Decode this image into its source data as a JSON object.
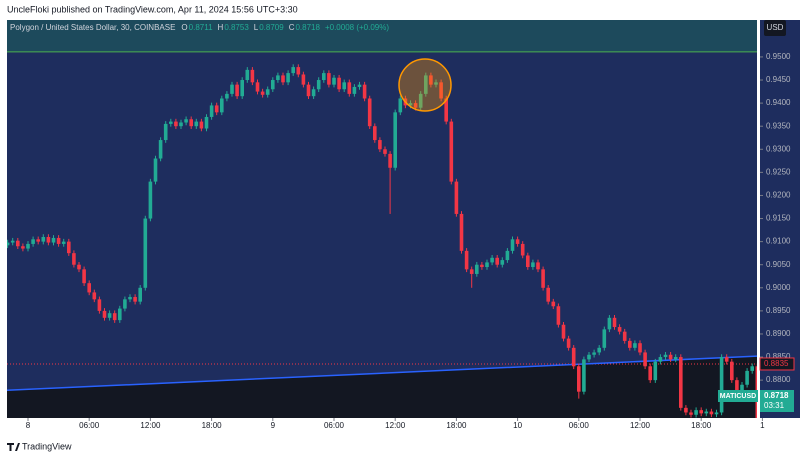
{
  "chart_data": {
    "type": "candlestick",
    "publisher": "UncleFloki published on TradingView.com, Apr 11, 2024 15:56 UTC+3:30",
    "title": "Polygon / United States Dollar, 30, COINBASE",
    "legend_ohlc": [
      {
        "label": "O",
        "value": 0.8711
      },
      {
        "label": "H",
        "value": 0.8753
      },
      {
        "label": "L",
        "value": 0.8709
      },
      {
        "label": "C",
        "value": 0.8718
      }
    ],
    "change": "+0.0008 (+0.09%)",
    "currency": "USD",
    "symbol": "MATICUSD",
    "last_price": 0.8718,
    "countdown": "03:31",
    "footer": "TradingView",
    "up_color": "#22ab94",
    "down_color": "#f23645",
    "ylim": [
      0.8718,
      0.958
    ],
    "yticks": [
      {
        "value": 0.95,
        "label": "0.9500"
      },
      {
        "value": 0.945,
        "label": "0.9450"
      },
      {
        "value": 0.94,
        "label": "0.9400"
      },
      {
        "value": 0.935,
        "label": "0.9350"
      },
      {
        "value": 0.93,
        "label": "0.9300"
      },
      {
        "value": 0.925,
        "label": "0.9250"
      },
      {
        "value": 0.92,
        "label": "0.9200"
      },
      {
        "value": 0.915,
        "label": "0.9150"
      },
      {
        "value": 0.91,
        "label": "0.9100"
      },
      {
        "value": 0.905,
        "label": "0.9050"
      },
      {
        "value": 0.9,
        "label": "0.9000"
      },
      {
        "value": 0.895,
        "label": "0.8950"
      },
      {
        "value": 0.89,
        "label": "0.8900"
      },
      {
        "value": 0.885,
        "label": "0.8850"
      },
      {
        "value": 0.88,
        "label": "0.8800"
      }
    ],
    "levels": [
      {
        "value": 0.9511,
        "color": "#4caf50"
      },
      {
        "value": 0.8835,
        "color": "#f23645"
      }
    ],
    "trendline": {
      "values": [
        0.8778,
        0.8852
      ],
      "color": "#2962ff"
    },
    "categories": [
      null,
      null,
      null,
      null,
      "8",
      null,
      null,
      null,
      null,
      null,
      null,
      null,
      null,
      null,
      null,
      null,
      "06:00",
      null,
      null,
      null,
      null,
      null,
      null,
      null,
      null,
      null,
      null,
      null,
      "12:00",
      null,
      null,
      null,
      null,
      null,
      null,
      null,
      null,
      null,
      null,
      null,
      "18:00",
      null,
      null,
      null,
      null,
      null,
      null,
      null,
      null,
      null,
      null,
      null,
      "9",
      null,
      null,
      null,
      null,
      null,
      null,
      null,
      null,
      null,
      null,
      null,
      "06:00",
      null,
      null,
      null,
      null,
      null,
      null,
      null,
      null,
      null,
      null,
      null,
      "12:00",
      null,
      null,
      null,
      null,
      null,
      null,
      null,
      null,
      null,
      null,
      null,
      "18:00",
      null,
      null,
      null,
      null,
      null,
      null,
      null,
      null,
      null,
      null,
      null,
      "10",
      null,
      null,
      null,
      null,
      null,
      null,
      null,
      null,
      null,
      null,
      null,
      "06:00",
      null,
      null,
      null,
      null,
      null,
      null,
      null,
      null,
      null,
      null,
      null,
      "12:00",
      null,
      null,
      null,
      null,
      null,
      null,
      null,
      null,
      null,
      null,
      null,
      "18:00",
      null,
      null,
      null,
      null,
      null,
      null,
      null,
      null,
      null,
      null,
      null,
      "1"
    ],
    "open": [
      0.9092,
      0.9098,
      0.9102,
      0.909,
      0.9085,
      0.9095,
      0.9105,
      0.91,
      0.911,
      0.9098,
      0.9108,
      0.9095,
      0.91,
      0.9075,
      0.905,
      0.904,
      0.901,
      0.899,
      0.8975,
      0.895,
      0.8935,
      0.8945,
      0.893,
      0.8955,
      0.8975,
      0.898,
      0.897,
      0.9,
      0.915,
      0.923,
      0.928,
      0.932,
      0.9355,
      0.936,
      0.935,
      0.9358,
      0.9365,
      0.935,
      0.936,
      0.9345,
      0.937,
      0.9395,
      0.938,
      0.941,
      0.942,
      0.944,
      0.9415,
      0.945,
      0.9472,
      0.9445,
      0.9425,
      0.9418,
      0.943,
      0.945,
      0.946,
      0.9445,
      0.9465,
      0.9478,
      0.9462,
      0.944,
      0.9415,
      0.943,
      0.945,
      0.9465,
      0.944,
      0.9455,
      0.943,
      0.9445,
      0.942,
      0.9435,
      0.944,
      0.941,
      0.935,
      0.932,
      0.93,
      0.929,
      0.926,
      0.938,
      0.941,
      0.9395,
      0.94,
      0.939,
      0.942,
      0.946,
      0.944,
      0.9445,
      0.941,
      0.936,
      0.923,
      0.916,
      0.908,
      0.904,
      0.903,
      0.905,
      0.9045,
      0.9055,
      0.9065,
      0.905,
      0.906,
      0.908,
      0.9105,
      0.9095,
      0.907,
      0.9045,
      0.9055,
      0.904,
      0.9,
      0.897,
      0.896,
      0.892,
      0.889,
      0.887,
      0.883,
      0.8775,
      0.8845,
      0.8855,
      0.886,
      0.887,
      0.891,
      0.8935,
      0.8915,
      0.8905,
      0.8885,
      0.887,
      0.888,
      0.886,
      0.883,
      0.88,
      0.884,
      0.885,
      0.8855,
      0.8845,
      0.885,
      0.874,
      0.873,
      0.8725,
      0.8735,
      0.8728,
      0.8732,
      0.8726,
      0.873,
      0.885,
      0.884,
      0.88,
      0.876,
      0.879,
      0.882,
      0.883,
      0.8711
    ],
    "high": [
      0.9104,
      0.9108,
      0.9108,
      0.9096,
      0.9101,
      0.9111,
      0.9111,
      0.9116,
      0.9116,
      0.9114,
      0.9114,
      0.9106,
      0.9106,
      0.9081,
      0.9056,
      0.9046,
      0.9016,
      0.8996,
      0.8981,
      0.8956,
      0.8951,
      0.8951,
      0.8961,
      0.8981,
      0.8986,
      0.8986,
      0.9006,
      0.9156,
      0.9236,
      0.9286,
      0.9326,
      0.9361,
      0.9366,
      0.9366,
      0.9364,
      0.9371,
      0.9371,
      0.9366,
      0.9366,
      0.9376,
      0.9401,
      0.9401,
      0.9416,
      0.9426,
      0.9446,
      0.9446,
      0.9456,
      0.9478,
      0.9478,
      0.9451,
      0.9431,
      0.9436,
      0.9456,
      0.9466,
      0.9466,
      0.9471,
      0.9484,
      0.9484,
      0.9468,
      0.9446,
      0.9436,
      0.9456,
      0.9471,
      0.9471,
      0.9461,
      0.9461,
      0.9451,
      0.9451,
      0.9441,
      0.9446,
      0.9446,
      0.9416,
      0.9356,
      0.9326,
      0.9306,
      0.9296,
      0.9386,
      0.9416,
      0.9416,
      0.9406,
      0.9406,
      0.9426,
      0.9466,
      0.9466,
      0.9451,
      0.9451,
      0.9416,
      0.9366,
      0.9236,
      0.9166,
      0.9086,
      0.9046,
      0.9056,
      0.9056,
      0.9061,
      0.9071,
      0.9071,
      0.9066,
      0.9086,
      0.9111,
      0.9111,
      0.9101,
      0.9076,
      0.9061,
      0.9061,
      0.9046,
      0.9006,
      0.8976,
      0.8966,
      0.8926,
      0.8896,
      0.8876,
      0.8836,
      0.8851,
      0.8861,
      0.8866,
      0.8876,
      0.8916,
      0.8941,
      0.8941,
      0.8921,
      0.8911,
      0.8891,
      0.8886,
      0.8886,
      0.8866,
      0.8836,
      0.8846,
      0.8856,
      0.8861,
      0.8861,
      0.8856,
      0.8856,
      0.8746,
      0.8736,
      0.8741,
      0.8741,
      0.8738,
      0.8738,
      0.8736,
      0.8856,
      0.8856,
      0.8846,
      0.8806,
      0.8796,
      0.8826,
      0.8836,
      0.8836,
      0.8753
    ],
    "low": [
      0.9086,
      0.9092,
      0.9084,
      0.9079,
      0.9079,
      0.9089,
      0.9094,
      0.9094,
      0.9092,
      0.9092,
      0.9089,
      0.9089,
      0.9069,
      0.9044,
      0.9034,
      0.9004,
      0.8984,
      0.8969,
      0.8944,
      0.8929,
      0.8929,
      0.8924,
      0.8924,
      0.8949,
      0.8969,
      0.8964,
      0.8964,
      0.8994,
      0.9144,
      0.9224,
      0.9274,
      0.9314,
      0.9349,
      0.9344,
      0.9344,
      0.9352,
      0.9344,
      0.9344,
      0.9339,
      0.9339,
      0.9364,
      0.9374,
      0.9374,
      0.9404,
      0.9414,
      0.9409,
      0.9409,
      0.9444,
      0.9439,
      0.9419,
      0.9412,
      0.9412,
      0.9424,
      0.9444,
      0.9439,
      0.9439,
      0.9459,
      0.9456,
      0.9434,
      0.9409,
      0.9409,
      0.9424,
      0.9444,
      0.9434,
      0.9434,
      0.9424,
      0.9424,
      0.9414,
      0.9414,
      0.9429,
      0.9404,
      0.9344,
      0.9314,
      0.9294,
      0.9284,
      0.916,
      0.9254,
      0.9374,
      0.9389,
      0.9389,
      0.9384,
      0.9384,
      0.9414,
      0.9434,
      0.9434,
      0.9404,
      0.9354,
      0.9224,
      0.9154,
      0.9074,
      0.9034,
      0.9,
      0.9024,
      0.9039,
      0.9039,
      0.9049,
      0.9044,
      0.9044,
      0.9054,
      0.9074,
      0.9089,
      0.9064,
      0.9039,
      0.9039,
      0.9034,
      0.8994,
      0.8964,
      0.8954,
      0.8914,
      0.8884,
      0.8864,
      0.8824,
      0.876,
      0.8769,
      0.8839,
      0.8849,
      0.8854,
      0.8864,
      0.8904,
      0.8909,
      0.8899,
      0.8879,
      0.8864,
      0.8864,
      0.8854,
      0.8824,
      0.8794,
      0.8794,
      0.8834,
      0.8844,
      0.8839,
      0.8839,
      0.8734,
      0.8724,
      0.8719,
      0.8719,
      0.8722,
      0.8722,
      0.872,
      0.872,
      0.8724,
      0.8834,
      0.8794,
      0.8754,
      0.8754,
      0.8784,
      0.8814,
      0.8705,
      0.8709
    ],
    "close": [
      0.9098,
      0.9102,
      0.909,
      0.9085,
      0.9095,
      0.9105,
      0.91,
      0.911,
      0.9098,
      0.9108,
      0.9095,
      0.91,
      0.9075,
      0.905,
      0.904,
      0.901,
      0.899,
      0.8975,
      0.895,
      0.8935,
      0.8945,
      0.893,
      0.8955,
      0.8975,
      0.898,
      0.897,
      0.9,
      0.915,
      0.923,
      0.928,
      0.932,
      0.9355,
      0.936,
      0.935,
      0.9358,
      0.9365,
      0.935,
      0.936,
      0.9345,
      0.937,
      0.9395,
      0.938,
      0.941,
      0.942,
      0.944,
      0.9415,
      0.945,
      0.9472,
      0.9445,
      0.9425,
      0.9418,
      0.943,
      0.945,
      0.946,
      0.9445,
      0.9465,
      0.9478,
      0.9462,
      0.944,
      0.9415,
      0.943,
      0.945,
      0.9465,
      0.944,
      0.9455,
      0.943,
      0.9445,
      0.942,
      0.9435,
      0.944,
      0.941,
      0.935,
      0.932,
      0.93,
      0.929,
      0.926,
      0.938,
      0.941,
      0.9395,
      0.94,
      0.939,
      0.942,
      0.946,
      0.944,
      0.9445,
      0.941,
      0.936,
      0.923,
      0.916,
      0.908,
      0.904,
      0.903,
      0.905,
      0.9045,
      0.9055,
      0.9065,
      0.905,
      0.906,
      0.908,
      0.9105,
      0.9095,
      0.907,
      0.9045,
      0.9055,
      0.904,
      0.9,
      0.897,
      0.896,
      0.892,
      0.889,
      0.887,
      0.883,
      0.8775,
      0.8845,
      0.8855,
      0.886,
      0.887,
      0.891,
      0.8935,
      0.8915,
      0.8905,
      0.8885,
      0.887,
      0.888,
      0.886,
      0.883,
      0.88,
      0.884,
      0.885,
      0.8855,
      0.8845,
      0.885,
      0.874,
      0.873,
      0.8725,
      0.8735,
      0.8728,
      0.8732,
      0.8726,
      0.873,
      0.885,
      0.884,
      0.88,
      0.876,
      0.879,
      0.882,
      0.883,
      0.8711,
      0.8718
    ]
  }
}
